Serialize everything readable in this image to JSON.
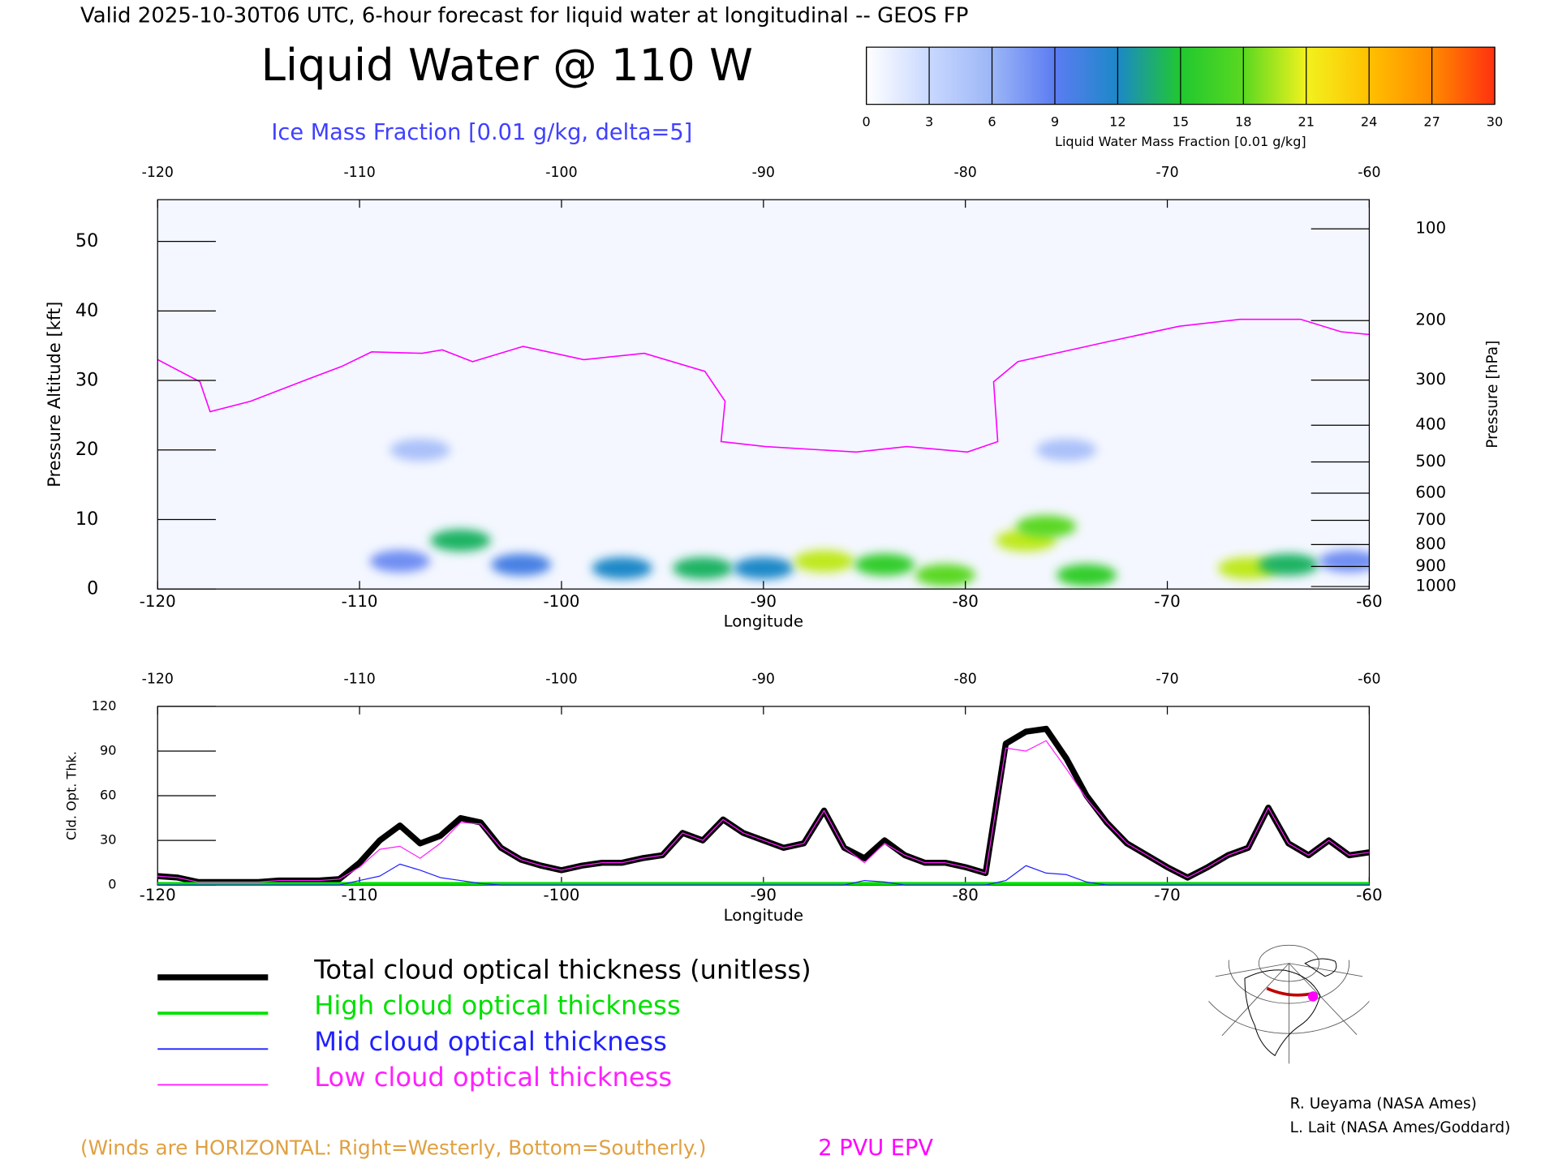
{
  "header": {
    "valid": "Valid 2025-10-30T06 UTC, 6-hour forecast for liquid water at longitudinal -- GEOS FP",
    "title": "Liquid Water @ 110 W",
    "subtitle": "Ice Mass Fraction [0.01 g/kg, delta=5]"
  },
  "colorbar": {
    "ticks": [
      0,
      3,
      6,
      9,
      12,
      15,
      18,
      21,
      24,
      27,
      30
    ],
    "colors": [
      "#ffffff",
      "#c9d8ff",
      "#9cb6f6",
      "#5c7cf2",
      "#1c88c8",
      "#20c830",
      "#5ad820",
      "#f2f21e",
      "#ffc000",
      "#ff8a00",
      "#ff3010"
    ],
    "label": "Liquid Water Mass Fraction [0.01 g/kg]"
  },
  "chart_data": [
    {
      "type": "heatmap",
      "xlabel": "Longitude",
      "ylabel": "Pressure Altitude [kft]",
      "y2label": "Pressure [hPa]",
      "xlim": [
        -120,
        -60
      ],
      "xticks": [
        -120,
        -110,
        -100,
        -90,
        -80,
        -70,
        -60
      ],
      "ylim": [
        0,
        56
      ],
      "yticks": [
        0,
        10,
        20,
        30,
        40,
        50
      ],
      "y2scale": "pressure-altitude",
      "y2ticks": [
        100,
        200,
        300,
        400,
        500,
        600,
        700,
        800,
        900,
        1000
      ],
      "cells": {
        "x": [
          -108,
          -105,
          -102,
          -97,
          -93,
          -90,
          -87,
          -84,
          -81,
          -77,
          -76,
          -74,
          -66,
          -64,
          -61,
          -107,
          -75
        ],
        "y": [
          4,
          7,
          3.5,
          3,
          3,
          3,
          4,
          3.5,
          2,
          7,
          9,
          2,
          3,
          3.5,
          4,
          20,
          20
        ],
        "values": [
          8,
          14,
          10,
          12,
          14,
          12,
          20,
          16,
          18,
          20,
          18,
          16,
          20,
          14,
          8,
          5,
          5
        ]
      },
      "series": [
        {
          "name": "2 PVU EPV",
          "color": "#ff00ff",
          "x": [
            -120,
            -117.9,
            -117.4,
            -115.4,
            -112.9,
            -110.9,
            -109.4,
            -106.9,
            -105.9,
            -104.4,
            -101.9,
            -98.9,
            -95.9,
            -92.9,
            -91.9,
            -92.1,
            -89.9,
            -85.4,
            -82.9,
            -79.9,
            -78.4,
            -78.6,
            -77.4,
            -72.9,
            -69.4,
            -66.4,
            -63.4,
            -61.4,
            -60
          ],
          "values": [
            33,
            29.8,
            25.5,
            27,
            29.8,
            32,
            34.1,
            33.9,
            34.4,
            32.7,
            34.9,
            33,
            33.9,
            31.3,
            27,
            21.2,
            20.5,
            19.7,
            20.5,
            19.7,
            21.2,
            29.8,
            32.7,
            35.6,
            37.8,
            38.8,
            38.8,
            37,
            36.6
          ]
        }
      ]
    },
    {
      "type": "line",
      "xlabel": "Longitude",
      "ylabel": "Cld. Opt. Thk.",
      "xlim": [
        -120,
        -60
      ],
      "xticks": [
        -120,
        -110,
        -100,
        -90,
        -80,
        -70,
        -60
      ],
      "ylim": [
        0,
        120
      ],
      "yticks": [
        0,
        30,
        60,
        90,
        120
      ],
      "x": [
        -120,
        -119,
        -118,
        -117,
        -116,
        -115,
        -114,
        -113,
        -112,
        -111,
        -110,
        -109,
        -108,
        -107,
        -106,
        -105,
        -104,
        -103,
        -102,
        -101,
        -100,
        -99,
        -98,
        -97,
        -96,
        -95,
        -94,
        -93,
        -92,
        -91,
        -90,
        -89,
        -88,
        -87,
        -86,
        -85,
        -84,
        -83,
        -82,
        -81,
        -80,
        -79,
        -78,
        -77,
        -76,
        -75,
        -74,
        -73,
        -72,
        -71,
        -70,
        -69,
        -68,
        -67,
        -66,
        -65,
        -64,
        -63,
        -62,
        -61,
        -60
      ],
      "series": [
        {
          "name": "Total cloud optical thickness (unitless)",
          "color": "#000000",
          "values": [
            6,
            5,
            2,
            2,
            2,
            2,
            3,
            3,
            3,
            4,
            15,
            30,
            40,
            28,
            33,
            45,
            42,
            25,
            17,
            13,
            10,
            13,
            15,
            15,
            18,
            20,
            35,
            30,
            44,
            35,
            30,
            25,
            28,
            50,
            25,
            18,
            30,
            20,
            15,
            15,
            12,
            8,
            95,
            103,
            105,
            85,
            60,
            42,
            28,
            20,
            12,
            5,
            12,
            20,
            25,
            52,
            28,
            20,
            30,
            20,
            22
          ]
        },
        {
          "name": "High cloud optical thickness",
          "color": "#00e000",
          "values": [
            1,
            1,
            1,
            1,
            1,
            1,
            1,
            1,
            1,
            1,
            1,
            1,
            1,
            1,
            1,
            1,
            1,
            1,
            1,
            1,
            1,
            1,
            1,
            1,
            1,
            1,
            1,
            1,
            1,
            1,
            1,
            1,
            1,
            1,
            1,
            1,
            1,
            1,
            1,
            1,
            1,
            1,
            1,
            1,
            1,
            1,
            1,
            1,
            1,
            1,
            1,
            1,
            1,
            1,
            1,
            1,
            1,
            1,
            1,
            1,
            1
          ]
        },
        {
          "name": "Mid cloud optical thickness",
          "color": "#2020ff",
          "values": [
            0,
            0,
            0,
            0,
            0,
            0,
            0,
            0,
            0,
            0,
            3,
            6,
            14,
            10,
            5,
            3,
            1,
            0,
            0,
            0,
            0,
            0,
            0,
            0,
            0,
            0,
            0,
            0,
            0,
            0,
            0,
            0,
            0,
            0,
            0,
            3,
            2,
            0,
            0,
            0,
            0,
            0,
            3,
            13,
            8,
            7,
            2,
            0,
            0,
            0,
            0,
            0,
            0,
            0,
            0,
            0,
            0,
            0,
            0,
            0,
            0
          ]
        },
        {
          "name": "Low cloud optical thickness",
          "color": "#ff20ff",
          "values": [
            6,
            5,
            2,
            2,
            2,
            2,
            3,
            3,
            3,
            4,
            12,
            24,
            26,
            18,
            28,
            42,
            41,
            25,
            17,
            13,
            10,
            13,
            15,
            15,
            18,
            20,
            35,
            30,
            44,
            35,
            30,
            25,
            28,
            50,
            25,
            15,
            28,
            20,
            15,
            15,
            12,
            8,
            92,
            90,
            97,
            78,
            58,
            42,
            28,
            20,
            12,
            5,
            12,
            20,
            25,
            52,
            28,
            20,
            30,
            20,
            22
          ]
        }
      ]
    }
  ],
  "notes": {
    "winds": "(Winds are HORIZONTAL: Right=Westerly, Bottom=Southerly.)"
  },
  "credits": [
    "R. Ueyama (NASA Ames)",
    "L. Lait (NASA Ames/Goddard)"
  ]
}
